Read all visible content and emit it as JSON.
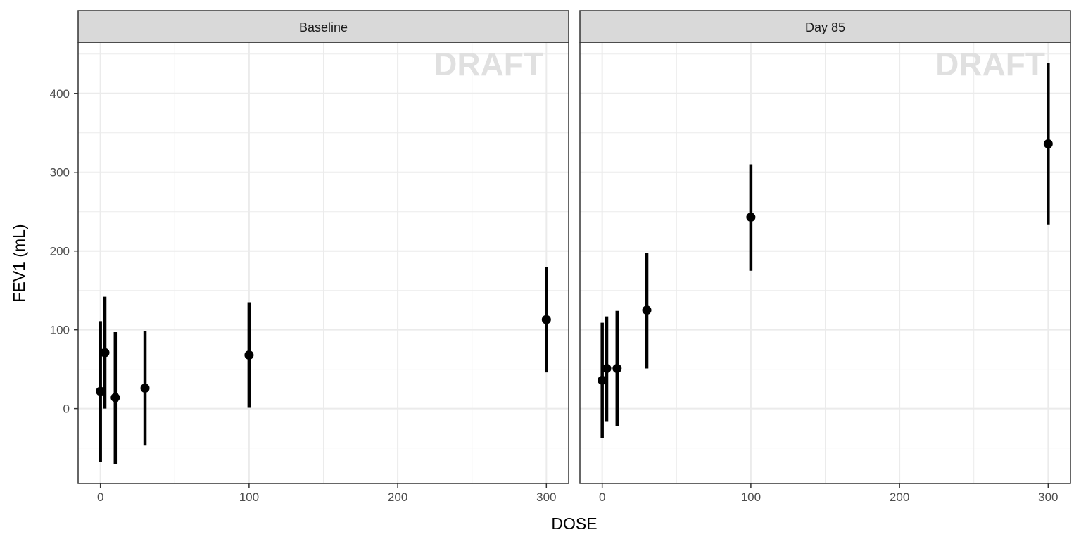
{
  "chart_data": {
    "type": "scatter",
    "xlabel": "DOSE",
    "ylabel": "FEV1 (mL)",
    "xlim": [
      -15,
      315
    ],
    "ylim": [
      -95,
      465
    ],
    "x_ticks": [
      0,
      100,
      200,
      300
    ],
    "y_ticks": [
      0,
      100,
      200,
      300,
      400
    ],
    "grid": true,
    "watermark": "DRAFT",
    "colors": {
      "points": "#000000",
      "strip_background": "#d9d9d9",
      "panel_border": "#333333",
      "grid": "#ebebeb",
      "watermark": "#e0e0e0"
    },
    "panels": [
      {
        "label": "Baseline",
        "points": [
          {
            "x": 0,
            "y": 22,
            "lower": -68,
            "upper": 111
          },
          {
            "x": 3,
            "y": 71,
            "lower": 0,
            "upper": 142
          },
          {
            "x": 10,
            "y": 14,
            "lower": -70,
            "upper": 97
          },
          {
            "x": 30,
            "y": 26,
            "lower": -47,
            "upper": 98
          },
          {
            "x": 100,
            "y": 68,
            "lower": 1,
            "upper": 135
          },
          {
            "x": 300,
            "y": 113,
            "lower": 46,
            "upper": 180
          }
        ]
      },
      {
        "label": "Day 85",
        "points": [
          {
            "x": 0,
            "y": 36,
            "lower": -37,
            "upper": 109
          },
          {
            "x": 3,
            "y": 51,
            "lower": -16,
            "upper": 117
          },
          {
            "x": 10,
            "y": 51,
            "lower": -22,
            "upper": 124
          },
          {
            "x": 30,
            "y": 125,
            "lower": 51,
            "upper": 198
          },
          {
            "x": 100,
            "y": 243,
            "lower": 175,
            "upper": 310
          },
          {
            "x": 300,
            "y": 336,
            "lower": 233,
            "upper": 439
          }
        ]
      }
    ]
  }
}
